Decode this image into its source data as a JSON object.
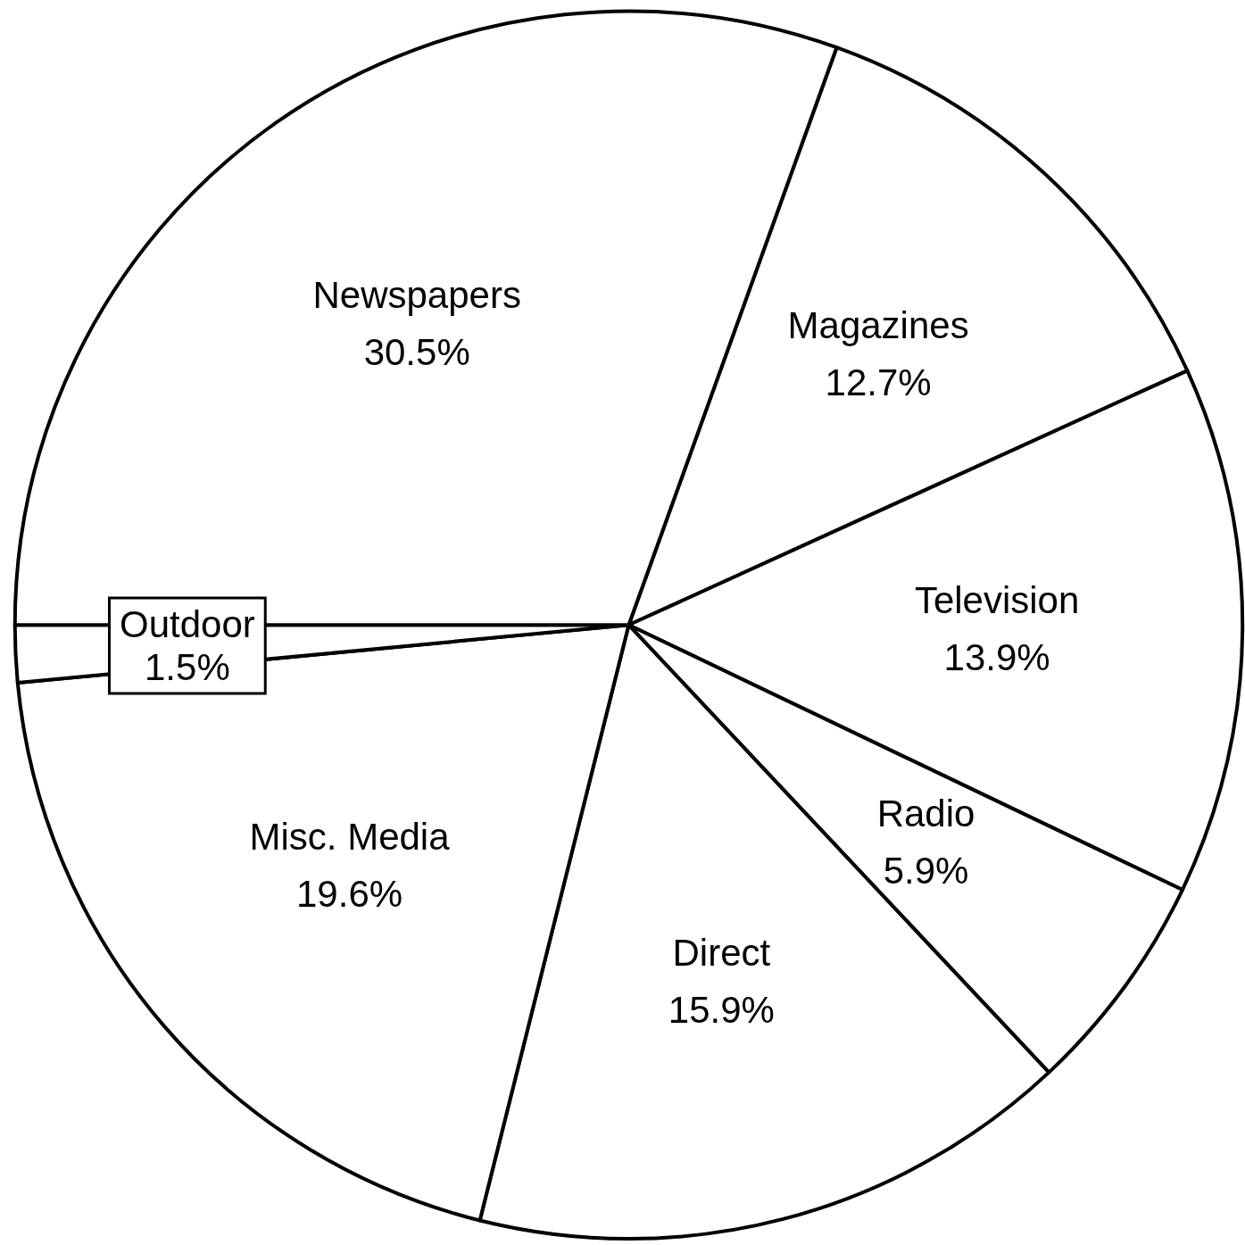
{
  "chart_data": {
    "type": "pie",
    "categories": [
      "Magazines",
      "Television",
      "Radio",
      "Direct",
      "Misc. Media",
      "Outdoor",
      "Newspapers"
    ],
    "values": [
      12.7,
      13.9,
      5.9,
      15.9,
      19.6,
      1.5,
      30.5
    ],
    "value_labels": [
      "12.7%",
      "13.9%",
      "5.9%",
      "15.9%",
      "19.6%",
      "1.5%",
      "30.5%"
    ],
    "colors": [
      "#ffffff",
      "#ffffff",
      "#ffffff",
      "#ffffff",
      "#ffffff",
      "#ffffff",
      "#ffffff"
    ],
    "legend": false
  }
}
